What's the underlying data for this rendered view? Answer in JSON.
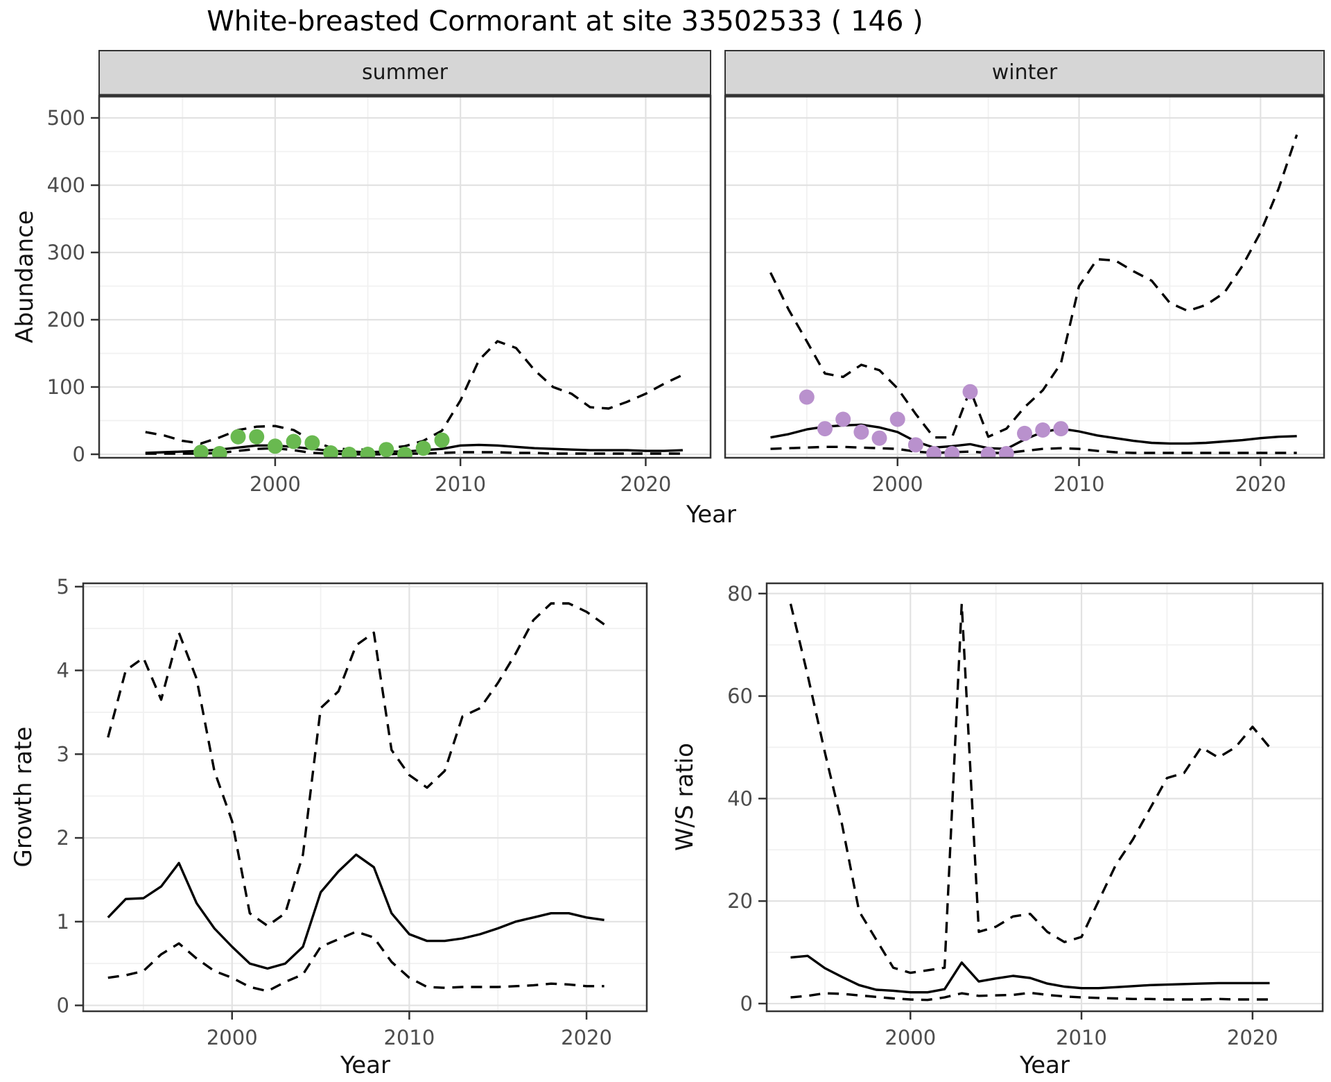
{
  "title": "White-breasted Cormorant at site 33502533 ( 146 )",
  "axes": {
    "abundance_label": "Abundance",
    "growth_label": "Growth rate",
    "ws_label": "W/S ratio",
    "year_label_top": "Year",
    "year_label_growth": "Year",
    "year_label_ws": "Year"
  },
  "facets": {
    "summer": "summer",
    "winter": "winter"
  },
  "colors": {
    "summer_points": "#69b950",
    "winter_points": "#b991cd",
    "line": "#000000",
    "grid_major": "#e2e2e2",
    "grid_minor": "#f1f1f1",
    "panel_border": "#333333",
    "strip_bg": "#d6d6d6",
    "tick_text": "#4d4d4d"
  },
  "chart_data": [
    {
      "id": "abundance_summer",
      "type": "line",
      "facet": "summer",
      "xlabel": "Year",
      "ylabel": "Abundance",
      "xlim": [
        1990.5,
        2023.5
      ],
      "ylim": [
        -5.2,
        533
      ],
      "xticks": [
        2000,
        2010,
        2020
      ],
      "xticks_minor": [
        1995,
        2005,
        2015
      ],
      "yticks": [
        0,
        100,
        200,
        300,
        400,
        500
      ],
      "yticks_minor": [
        50,
        150,
        250,
        350,
        450
      ],
      "series": [
        {
          "name": "fitted",
          "type": "line",
          "start_year": 1993,
          "values": [
            2,
            3,
            4,
            5,
            7,
            10,
            13,
            13,
            11,
            8,
            5,
            4,
            3,
            4,
            4,
            6,
            8,
            13,
            14,
            13,
            11,
            9,
            8,
            7,
            6,
            6,
            6,
            5,
            5,
            6
          ]
        },
        {
          "name": "upper_ci",
          "type": "dashed",
          "start_year": 1993,
          "values": [
            33,
            28,
            20,
            16,
            25,
            36,
            41,
            42,
            36,
            20,
            10,
            7,
            7,
            9,
            12,
            20,
            35,
            80,
            140,
            168,
            158,
            125,
            100,
            90,
            70,
            68,
            78,
            90,
            105,
            118
          ]
        },
        {
          "name": "lower_ci",
          "type": "dashed",
          "start_year": 1993,
          "values": [
            1,
            1,
            1,
            1,
            2,
            5,
            8,
            9,
            6,
            2,
            1,
            0,
            0,
            0,
            1,
            1,
            2,
            3,
            3,
            3,
            2,
            2,
            1,
            1,
            1,
            1,
            1,
            1,
            1,
            1
          ]
        },
        {
          "name": "observed",
          "type": "points",
          "color_key": "summer_points",
          "start_year": 1996,
          "values": [
            3,
            1,
            26,
            26,
            12,
            19,
            17,
            2,
            0,
            0,
            7,
            0,
            9,
            21
          ]
        }
      ]
    },
    {
      "id": "abundance_winter",
      "type": "line",
      "facet": "winter",
      "xlabel": "Year",
      "ylabel": "Abundance",
      "xlim": [
        1990.5,
        2023.5
      ],
      "ylim": [
        -5.2,
        533
      ],
      "xticks": [
        2000,
        2010,
        2020
      ],
      "xticks_minor": [
        1995,
        2005,
        2015
      ],
      "yticks": [
        0,
        100,
        200,
        300,
        400,
        500
      ],
      "yticks_minor": [
        50,
        150,
        250,
        350,
        450
      ],
      "series": [
        {
          "name": "fitted",
          "type": "line",
          "start_year": 1993,
          "values": [
            25,
            30,
            37,
            41,
            43,
            44,
            40,
            33,
            19,
            10,
            12,
            15,
            9,
            8,
            22,
            33,
            38,
            34,
            28,
            24,
            20,
            17,
            16,
            16,
            17,
            19,
            21,
            24,
            26,
            27
          ]
        },
        {
          "name": "upper_ci",
          "type": "dashed",
          "start_year": 1993,
          "values": [
            270,
            215,
            168,
            120,
            115,
            133,
            125,
            98,
            60,
            25,
            25,
            96,
            26,
            38,
            70,
            95,
            135,
            250,
            290,
            288,
            272,
            258,
            225,
            213,
            222,
            240,
            280,
            330,
            395,
            475
          ]
        },
        {
          "name": "lower_ci",
          "type": "dashed",
          "start_year": 1993,
          "values": [
            8,
            9,
            10,
            11,
            11,
            10,
            9,
            8,
            4,
            2,
            3,
            4,
            2,
            2,
            5,
            8,
            9,
            8,
            5,
            3,
            2,
            2,
            2,
            2,
            2,
            2,
            2,
            2,
            2,
            2
          ]
        },
        {
          "name": "observed",
          "type": "points",
          "color_key": "winter_points",
          "start_year": 1995,
          "values": [
            85,
            38,
            52,
            33,
            24,
            52,
            14,
            1,
            1,
            93,
            0,
            1,
            31,
            36,
            38
          ]
        }
      ]
    },
    {
      "id": "growth_rate",
      "type": "line",
      "xlabel": "Year",
      "ylabel": "Growth rate",
      "xlim": [
        1991.6,
        2023.4
      ],
      "ylim": [
        -0.07,
        5.04
      ],
      "xticks": [
        2000,
        2010,
        2020
      ],
      "xticks_minor": [
        1995,
        2005,
        2015
      ],
      "yticks": [
        0,
        1,
        2,
        3,
        4,
        5
      ],
      "yticks_minor": [
        0.5,
        1.5,
        2.5,
        3.5,
        4.5
      ],
      "series": [
        {
          "name": "fitted",
          "type": "line",
          "start_year": 1993,
          "values": [
            1.05,
            1.27,
            1.28,
            1.42,
            1.7,
            1.22,
            0.92,
            0.7,
            0.5,
            0.44,
            0.5,
            0.7,
            1.35,
            1.6,
            1.8,
            1.65,
            1.1,
            0.85,
            0.77,
            0.77,
            0.8,
            0.85,
            0.92,
            1.0,
            1.05,
            1.1,
            1.1,
            1.05,
            1.02
          ]
        },
        {
          "name": "upper_ci",
          "type": "dashed",
          "start_year": 1993,
          "values": [
            3.2,
            4.0,
            4.15,
            3.65,
            4.45,
            3.9,
            2.8,
            2.2,
            1.1,
            0.95,
            1.1,
            1.8,
            3.55,
            3.75,
            4.3,
            4.45,
            3.05,
            2.75,
            2.6,
            2.8,
            3.45,
            3.55,
            3.85,
            4.2,
            4.6,
            4.8,
            4.8,
            4.7,
            4.55
          ]
        },
        {
          "name": "lower_ci",
          "type": "dashed",
          "start_year": 1993,
          "values": [
            0.33,
            0.36,
            0.41,
            0.61,
            0.74,
            0.56,
            0.41,
            0.33,
            0.22,
            0.17,
            0.28,
            0.37,
            0.7,
            0.79,
            0.88,
            0.81,
            0.52,
            0.33,
            0.22,
            0.21,
            0.22,
            0.22,
            0.22,
            0.23,
            0.24,
            0.26,
            0.25,
            0.23,
            0.23
          ]
        }
      ]
    },
    {
      "id": "ws_ratio",
      "type": "line",
      "xlabel": "Year",
      "ylabel": "W/S ratio",
      "xlim": [
        1991.6,
        2024.1
      ],
      "ylim": [
        -1.5,
        82
      ],
      "xticks": [
        2000,
        2010,
        2020
      ],
      "xticks_minor": [
        1995,
        2005,
        2015
      ],
      "yticks": [
        0,
        20,
        40,
        60,
        80
      ],
      "yticks_minor": [
        10,
        30,
        50,
        70
      ],
      "series": [
        {
          "name": "fitted",
          "type": "line",
          "start_year": 1993,
          "values": [
            9.0,
            9.3,
            6.9,
            5.2,
            3.6,
            2.7,
            2.5,
            2.2,
            2.2,
            2.8,
            8.0,
            4.3,
            4.9,
            5.4,
            5.0,
            3.9,
            3.3,
            3.0,
            3.0,
            3.2,
            3.4,
            3.6,
            3.7,
            3.8,
            3.9,
            4.0,
            4.0,
            4.0,
            4.0
          ]
        },
        {
          "name": "upper_ci",
          "type": "dashed",
          "start_year": 1993,
          "values": [
            78,
            64,
            49,
            35,
            18,
            12.5,
            7,
            6,
            6.5,
            7,
            78,
            14,
            15,
            17,
            17.5,
            14,
            12,
            13,
            20,
            27,
            32,
            38,
            44,
            45,
            50,
            48,
            50,
            54,
            50
          ]
        },
        {
          "name": "lower_ci",
          "type": "dashed",
          "start_year": 1993,
          "values": [
            1.2,
            1.5,
            2.0,
            1.9,
            1.6,
            1.3,
            1.0,
            0.8,
            0.7,
            1.2,
            2.0,
            1.5,
            1.6,
            1.7,
            2.1,
            1.7,
            1.4,
            1.2,
            1.1,
            1.0,
            0.9,
            0.9,
            0.8,
            0.8,
            0.8,
            0.9,
            0.8,
            0.8,
            0.8
          ]
        }
      ]
    }
  ]
}
